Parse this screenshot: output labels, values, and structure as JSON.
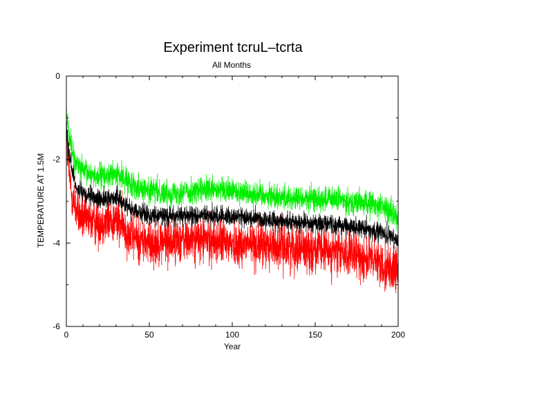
{
  "chart_data": {
    "type": "line",
    "title": "Experiment tcruL–tcrta",
    "subtitle": "All Months",
    "xlabel": "Year",
    "ylabel": "TEMPERATURE AT 1.5M",
    "xlim": [
      0,
      200
    ],
    "ylim": [
      -6,
      0
    ],
    "xticks": [
      0,
      50,
      100,
      150,
      200
    ],
    "yticks": [
      0,
      -2,
      -4,
      -6
    ],
    "x_minor_step": 10,
    "y_minor_step": 1,
    "grid": false,
    "legend": "none",
    "samples_per_year": 12,
    "series": [
      {
        "name": "green (upper)",
        "color": "#00ee00",
        "trend": [
          [
            0,
            -0.8
          ],
          [
            1,
            -1.2
          ],
          [
            3,
            -1.7
          ],
          [
            6,
            -2.1
          ],
          [
            10,
            -2.3
          ],
          [
            20,
            -2.4
          ],
          [
            30,
            -2.35
          ],
          [
            40,
            -2.6
          ],
          [
            50,
            -2.75
          ],
          [
            60,
            -2.8
          ],
          [
            80,
            -2.75
          ],
          [
            100,
            -2.75
          ],
          [
            120,
            -2.85
          ],
          [
            140,
            -2.95
          ],
          [
            160,
            -2.95
          ],
          [
            180,
            -3.05
          ],
          [
            190,
            -3.1
          ],
          [
            200,
            -3.4
          ]
        ],
        "noise_amplitude": 0.3
      },
      {
        "name": "black (mean)",
        "color": "#000000",
        "trend": [
          [
            0,
            -1.1
          ],
          [
            1,
            -1.6
          ],
          [
            3,
            -2.2
          ],
          [
            6,
            -2.65
          ],
          [
            10,
            -2.85
          ],
          [
            20,
            -2.95
          ],
          [
            30,
            -2.9
          ],
          [
            40,
            -3.2
          ],
          [
            50,
            -3.35
          ],
          [
            60,
            -3.35
          ],
          [
            80,
            -3.35
          ],
          [
            100,
            -3.35
          ],
          [
            120,
            -3.45
          ],
          [
            140,
            -3.5
          ],
          [
            160,
            -3.55
          ],
          [
            180,
            -3.65
          ],
          [
            190,
            -3.75
          ],
          [
            200,
            -3.95
          ]
        ],
        "noise_amplitude": 0.22
      },
      {
        "name": "red (lower)",
        "color": "#ff0000",
        "trend": [
          [
            0,
            -1.5
          ],
          [
            1,
            -2.0
          ],
          [
            3,
            -2.8
          ],
          [
            6,
            -3.2
          ],
          [
            10,
            -3.45
          ],
          [
            20,
            -3.5
          ],
          [
            30,
            -3.45
          ],
          [
            40,
            -3.85
          ],
          [
            50,
            -4.0
          ],
          [
            60,
            -3.95
          ],
          [
            80,
            -3.9
          ],
          [
            100,
            -4.0
          ],
          [
            120,
            -4.05
          ],
          [
            140,
            -4.1
          ],
          [
            160,
            -4.2
          ],
          [
            180,
            -4.35
          ],
          [
            190,
            -4.5
          ],
          [
            200,
            -4.7
          ]
        ],
        "noise_amplitude": 0.55
      }
    ]
  }
}
